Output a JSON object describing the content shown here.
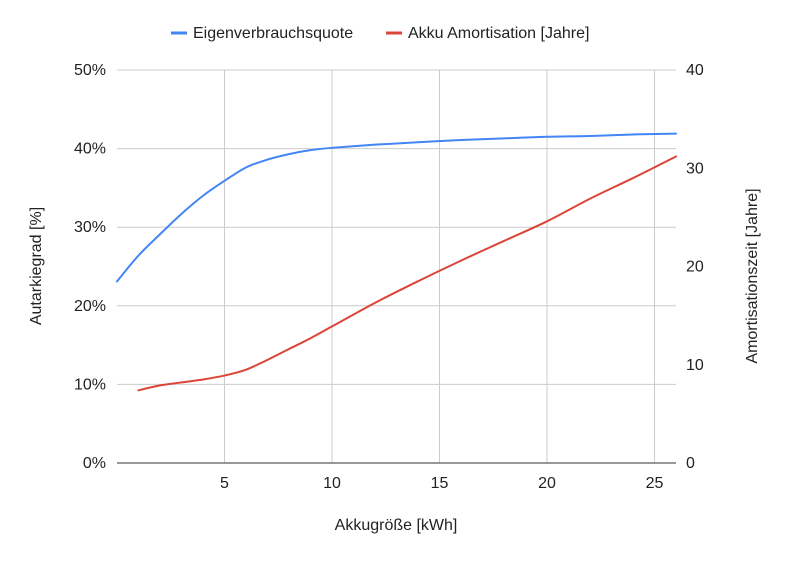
{
  "chart_data": {
    "type": "line",
    "title": "",
    "xlabel": "Akkugröße [kWh]",
    "ylabel_left": "Autarkiegrad [%]",
    "ylabel_right": "Amortisationszeit [Jahre]",
    "xlim": [
      0,
      26
    ],
    "ylim_left": [
      0,
      50
    ],
    "ylim_right": [
      0,
      40
    ],
    "x_ticks": [
      {
        "value": 5,
        "label": "5"
      },
      {
        "value": 10,
        "label": "10"
      },
      {
        "value": 15,
        "label": "15"
      },
      {
        "value": 20,
        "label": "20"
      },
      {
        "value": 25,
        "label": "25"
      }
    ],
    "y_left_ticks": [
      {
        "value": 0,
        "label": "0%"
      },
      {
        "value": 10,
        "label": "10%"
      },
      {
        "value": 20,
        "label": "20%"
      },
      {
        "value": 30,
        "label": "30%"
      },
      {
        "value": 40,
        "label": "40%"
      },
      {
        "value": 50,
        "label": "50%"
      }
    ],
    "y_right_ticks": [
      {
        "value": 0,
        "label": "0"
      },
      {
        "value": 10,
        "label": "10"
      },
      {
        "value": 20,
        "label": "20"
      },
      {
        "value": 30,
        "label": "30"
      },
      {
        "value": 40,
        "label": "40"
      }
    ],
    "grid": true,
    "legend_position": "top-center",
    "series": [
      {
        "name": "Eigenverbrauchsquote",
        "color": "#4285f4",
        "axis": "left",
        "x": [
          0,
          1,
          2,
          3,
          4,
          5,
          6,
          7,
          8,
          9,
          10,
          12,
          14,
          16,
          18,
          20,
          22,
          24,
          26
        ],
        "values": [
          23.1,
          26.4,
          29.1,
          31.7,
          34.0,
          35.9,
          37.6,
          38.6,
          39.3,
          39.8,
          40.1,
          40.5,
          40.8,
          41.1,
          41.3,
          41.5,
          41.6,
          41.8,
          41.9
        ]
      },
      {
        "name": "Akku Amortisation [Jahre]",
        "color": "#db4437",
        "axis": "right",
        "x": [
          1,
          2,
          3,
          4,
          5,
          6,
          7,
          8,
          9,
          10,
          12,
          14,
          16,
          18,
          20,
          22,
          24,
          26
        ],
        "values": [
          7.4,
          7.9,
          8.2,
          8.5,
          8.9,
          9.5,
          10.5,
          11.6,
          12.7,
          13.9,
          16.3,
          18.5,
          20.6,
          22.6,
          24.6,
          26.9,
          29.0,
          31.2
        ]
      }
    ]
  }
}
